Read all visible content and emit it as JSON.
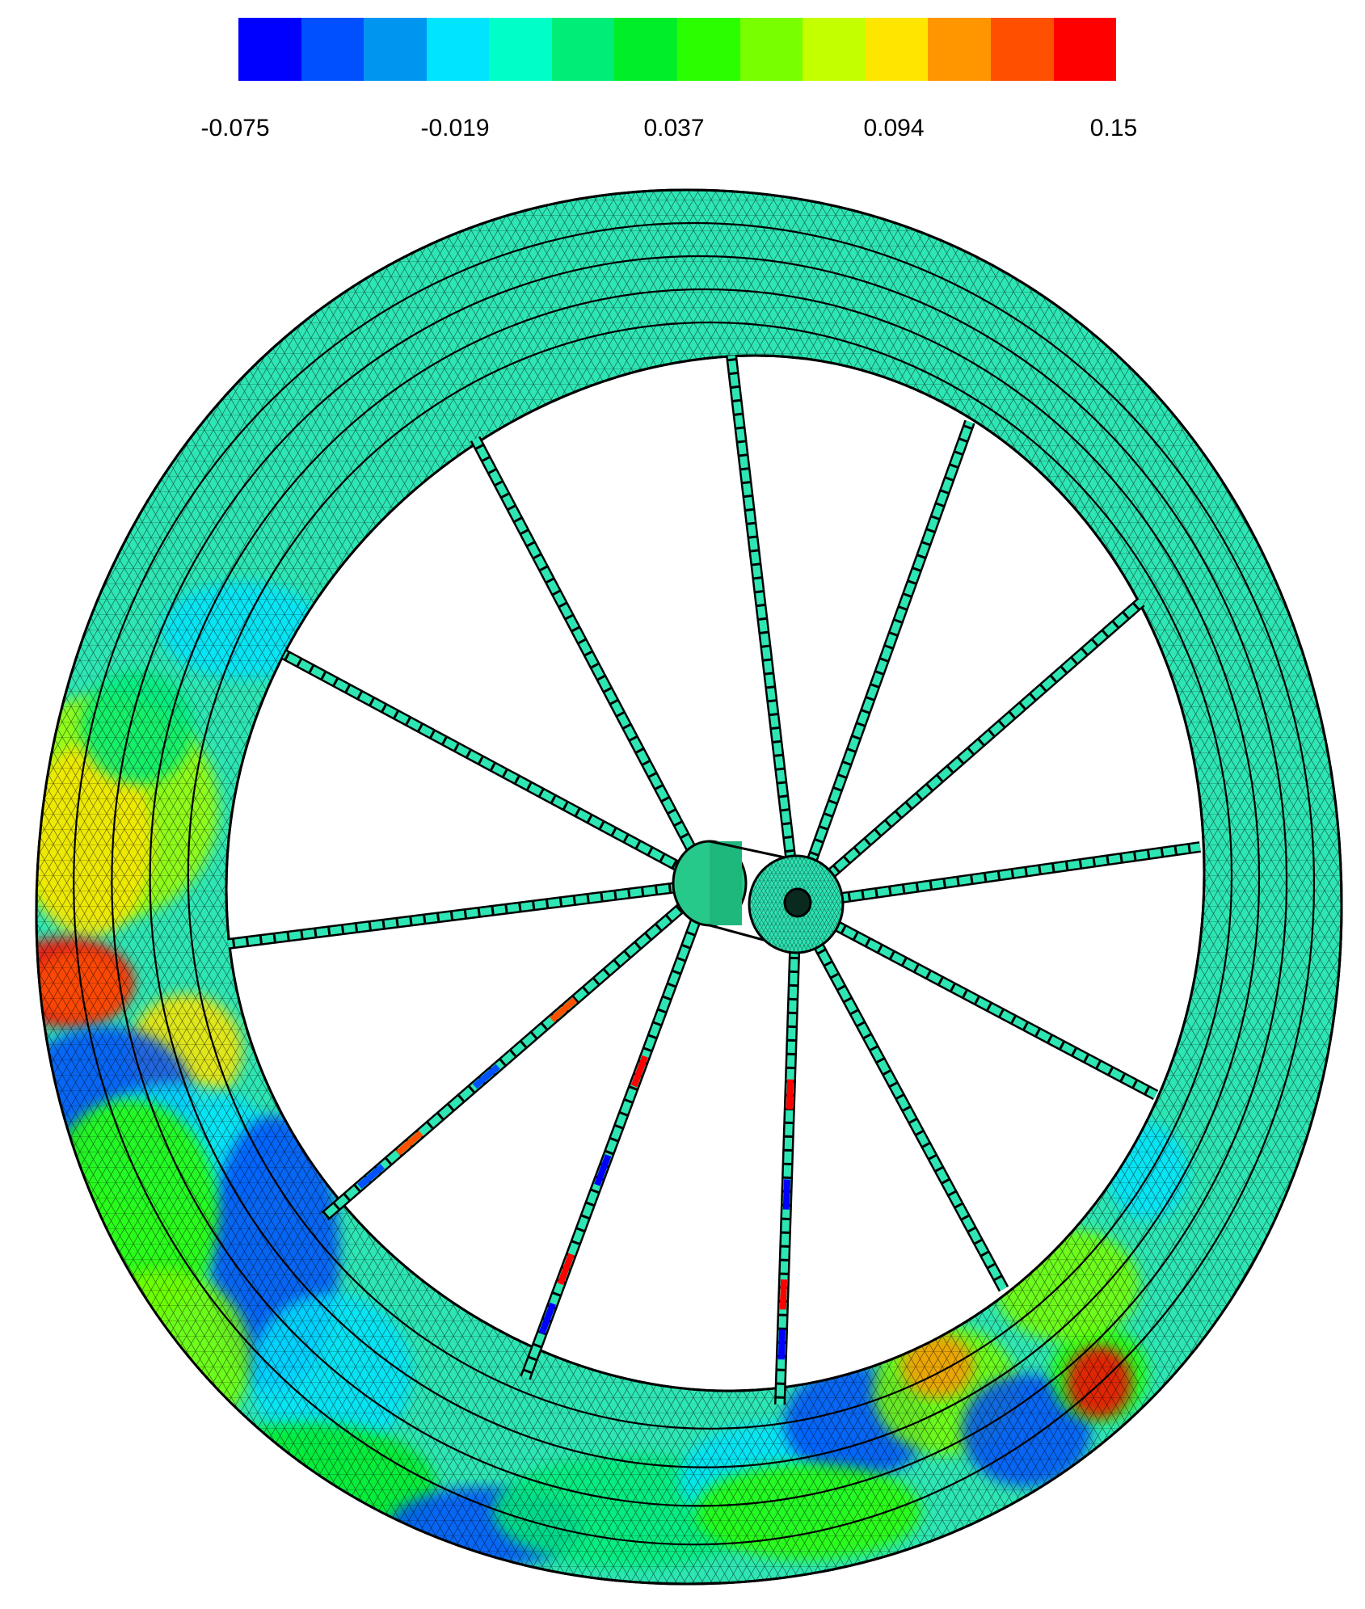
{
  "colorbar": {
    "colors": [
      "#0000ff",
      "#0050ff",
      "#0096f0",
      "#00e4ff",
      "#00ffc8",
      "#00ee78",
      "#00ee28",
      "#2aff00",
      "#78ff00",
      "#c4ff00",
      "#ffe600",
      "#ff9600",
      "#ff5000",
      "#ff0000"
    ],
    "labels": [
      "-0.075",
      "-0.019",
      "0.037",
      "0.094",
      "0.15"
    ],
    "min": -0.075,
    "max": 0.15
  },
  "scene": {
    "base_color": "#2ee6b4",
    "mesh_color": "#000000",
    "spoke_count": 12
  }
}
